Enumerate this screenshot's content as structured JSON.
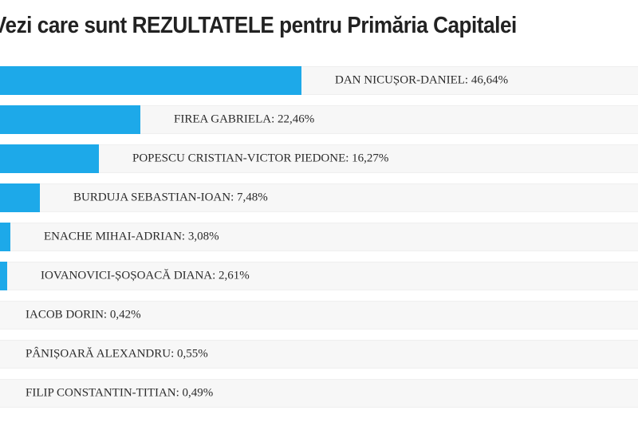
{
  "header": {
    "title": "Vezi care sunt REZULTATELE pentru Primăria Capitalei"
  },
  "chart_data": {
    "type": "bar",
    "orientation": "horizontal",
    "title": "Vezi care sunt REZULTATELE pentru Primăria Capitalei",
    "categories": [
      "DAN NICUȘOR-DANIEL",
      "FIREA GABRIELA",
      "POPESCU CRISTIAN-VICTOR PIEDONE",
      "BURDUJA SEBASTIAN-IOAN",
      "ENACHE MIHAI-ADRIAN",
      "IOVANOVICI-ȘOȘOACĂ DIANA",
      "IACOB DORIN",
      "PÂNIȘOARĂ ALEXANDRU",
      "FILIP CONSTANTIN-TITIAN"
    ],
    "values": [
      46.64,
      22.46,
      16.27,
      7.48,
      3.08,
      2.61,
      0.42,
      0.55,
      0.49
    ],
    "value_labels": [
      "46,64%",
      "22,46%",
      "16,27%",
      "7,48%",
      "3,08%",
      "2,61%",
      "0,42%",
      "0,55%",
      "0,49%"
    ],
    "bar_labels": [
      "DAN NICUȘOR-DANIEL: 46,64%",
      "FIREA GABRIELA: 22,46%",
      "POPESCU CRISTIAN-VICTOR PIEDONE: 16,27%",
      "BURDUJA SEBASTIAN-IOAN: 7,48%",
      "ENACHE MIHAI-ADRIAN: 3,08%",
      "IOVANOVICI-ȘOȘOACĂ DIANA: 2,61%",
      "IACOB DORIN: 0,42%",
      "PÂNIȘOARĂ ALEXANDRU: 0,55%",
      "FILIP CONSTANTIN-TITIAN: 0,49%"
    ],
    "xlim": [
      0,
      48
    ],
    "grid": false,
    "legend": false,
    "bar_color": "#1da9e9",
    "track_color": "#f7f7f7",
    "label_color": "#2b2b2b",
    "title_color": "#222222"
  }
}
